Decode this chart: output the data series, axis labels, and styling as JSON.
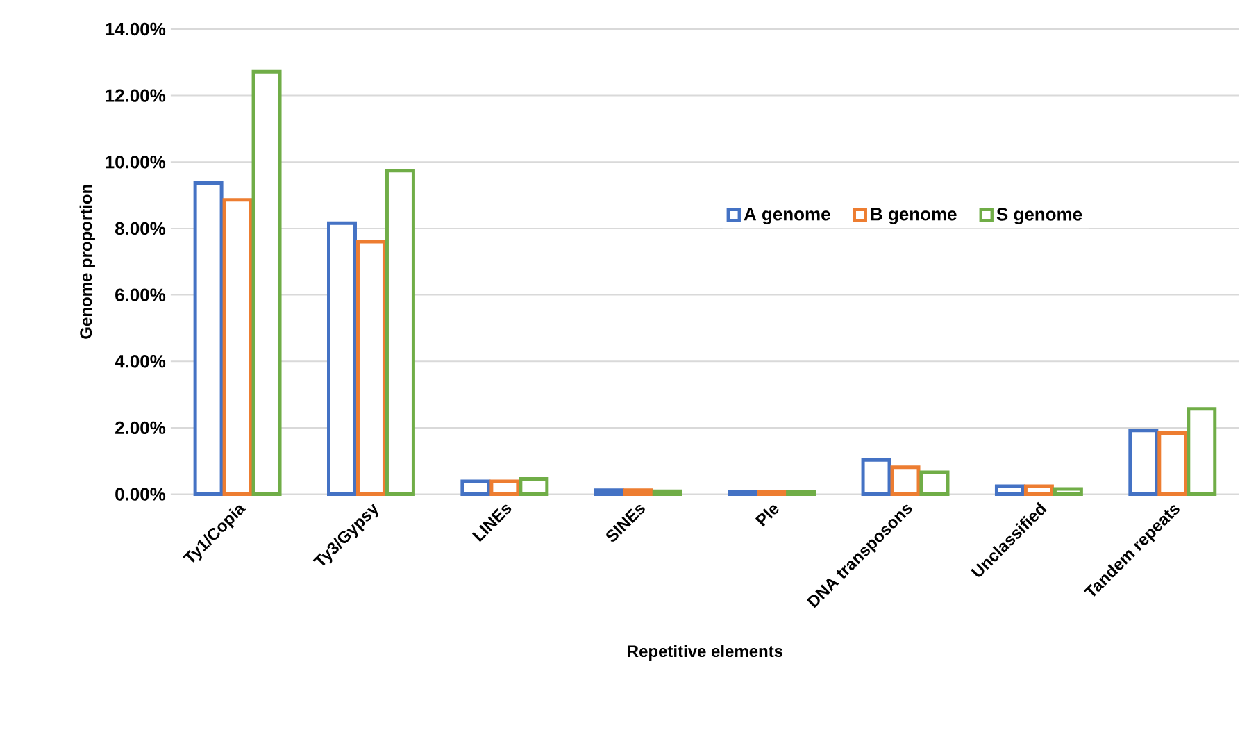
{
  "chart_data": {
    "type": "bar",
    "xlabel": "Repetitive elements",
    "ylabel": "Genome proportion",
    "categories": [
      "Ty1/Copia",
      "Ty3/Gypsy",
      "LINEs",
      "SINEs",
      "Ple",
      "DNA transposons",
      "Unclassified",
      "Tandem repeats"
    ],
    "series": [
      {
        "name": "A genome",
        "color": "#4472c4",
        "values": [
          9.37,
          8.16,
          0.39,
          0.12,
          0.08,
          1.03,
          0.24,
          1.92
        ]
      },
      {
        "name": "B genome",
        "color": "#ed7d31",
        "values": [
          8.86,
          7.6,
          0.39,
          0.12,
          0.08,
          0.81,
          0.24,
          1.84
        ]
      },
      {
        "name": "S genome",
        "color": "#70ad47",
        "values": [
          12.72,
          9.74,
          0.46,
          0.09,
          0.08,
          0.66,
          0.16,
          2.57
        ]
      }
    ],
    "ylim": [
      0,
      14
    ],
    "yticks": [
      {
        "value": 0,
        "label": "0.00%"
      },
      {
        "value": 2,
        "label": "2.00%"
      },
      {
        "value": 4,
        "label": "4.00%"
      },
      {
        "value": 6,
        "label": "6.00%"
      },
      {
        "value": 8,
        "label": "8.00%"
      },
      {
        "value": 10,
        "label": "10.00%"
      },
      {
        "value": 12,
        "label": "12.00%"
      },
      {
        "value": 14,
        "label": "14.00%"
      }
    ],
    "grid": "y",
    "legend": "right"
  }
}
